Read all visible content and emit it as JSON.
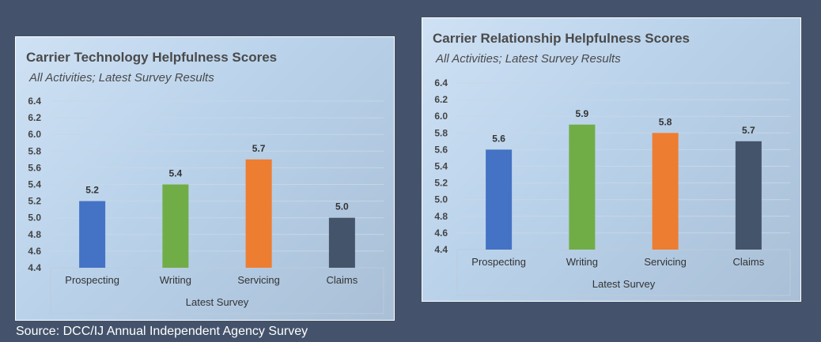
{
  "chart_data": [
    {
      "type": "bar",
      "title": "Carrier Technology Helpfulness Scores",
      "subtitle": "All Activities; Latest Survey Results",
      "categories": [
        "Prospecting",
        "Writing",
        "Servicing",
        "Claims"
      ],
      "values": [
        5.2,
        5.4,
        5.7,
        5.0
      ],
      "value_labels": [
        "5.2",
        "5.4",
        "5.7",
        "5.0"
      ],
      "colors": [
        "#4472c4",
        "#70ad47",
        "#ed7d31",
        "#44546a"
      ],
      "xlabel": "Latest Survey",
      "ylabel": "",
      "ylim": [
        4.4,
        6.4
      ],
      "yticks": [
        "4.4",
        "4.6",
        "4.8",
        "5.0",
        "5.2",
        "5.4",
        "5.6",
        "5.8",
        "6.0",
        "6.2",
        "6.4"
      ],
      "grid": true
    },
    {
      "type": "bar",
      "title": "Carrier Relationship Helpfulness Scores",
      "subtitle": "All Activities; Latest Survey Results",
      "categories": [
        "Prospecting",
        "Writing",
        "Servicing",
        "Claims"
      ],
      "values": [
        5.6,
        5.9,
        5.8,
        5.7
      ],
      "value_labels": [
        "5.6",
        "5.9",
        "5.8",
        "5.7"
      ],
      "colors": [
        "#4472c4",
        "#70ad47",
        "#ed7d31",
        "#44546a"
      ],
      "xlabel": "Latest Survey",
      "ylabel": "",
      "ylim": [
        4.4,
        6.4
      ],
      "yticks": [
        "4.4",
        "4.6",
        "4.8",
        "5.0",
        "5.2",
        "5.4",
        "5.6",
        "5.8",
        "6.0",
        "6.2",
        "6.4"
      ],
      "grid": true
    }
  ],
  "source": "Source: DCC/IJ Annual Independent Agency Survey"
}
